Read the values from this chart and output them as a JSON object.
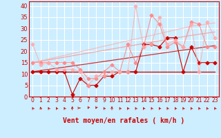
{
  "title": "",
  "xlabel": "Vent moyen/en rafales ( km/h )",
  "background_color": "#cceeff",
  "grid_color": "#ffffff",
  "x_values": [
    0,
    1,
    2,
    3,
    4,
    5,
    6,
    7,
    8,
    9,
    10,
    11,
    12,
    13,
    14,
    15,
    16,
    17,
    18,
    19,
    20,
    21,
    22,
    23
  ],
  "ylim": [
    0,
    42
  ],
  "yticks": [
    0,
    5,
    10,
    15,
    20,
    25,
    30,
    35,
    40
  ],
  "series": [
    {
      "label": "dark_red_data",
      "color": "#cc0000",
      "alpha": 1.0,
      "linewidth": 0.8,
      "marker": "D",
      "markersize": 2.5,
      "y": [
        11,
        11,
        11,
        11,
        11,
        1,
        8,
        5,
        5,
        9,
        9,
        11,
        11,
        11,
        23,
        23,
        22,
        26,
        26,
        11,
        22,
        15,
        15,
        15
      ]
    },
    {
      "label": "light_pink_data",
      "color": "#ff8888",
      "alpha": 0.9,
      "linewidth": 0.8,
      "marker": "D",
      "markersize": 2.5,
      "y": [
        15,
        15,
        15,
        15,
        15,
        15,
        12,
        8,
        8,
        11,
        14,
        11,
        23,
        15,
        22,
        36,
        32,
        22,
        24,
        22,
        33,
        32,
        22,
        22
      ]
    },
    {
      "label": "very_light_pink_data",
      "color": "#ffaaaa",
      "alpha": 0.8,
      "linewidth": 0.8,
      "marker": "D",
      "markersize": 2.5,
      "y": [
        23,
        14,
        15,
        12,
        12,
        12,
        11,
        5,
        9,
        9,
        11,
        11,
        11,
        40,
        22,
        23,
        35,
        23,
        25,
        22,
        32,
        11,
        33,
        26
      ]
    },
    {
      "label": "dark_red_trend",
      "color": "#cc0000",
      "alpha": 1.0,
      "linewidth": 0.9,
      "y": [
        11,
        11,
        11,
        11,
        11,
        11,
        11,
        11,
        11,
        11,
        11,
        11,
        11,
        11,
        11,
        11,
        11,
        11,
        11,
        11,
        11,
        11,
        11,
        11
      ]
    },
    {
      "label": "dark_red_trend2",
      "color": "#cc0000",
      "alpha": 0.8,
      "linewidth": 0.9,
      "y": [
        11,
        11.5,
        12,
        12.5,
        13,
        13.5,
        14,
        14.5,
        15,
        15.5,
        16,
        16.5,
        17,
        17.5,
        18,
        18.5,
        19,
        19.5,
        20,
        20.5,
        21,
        21.5,
        22,
        22.5
      ]
    },
    {
      "label": "pink_trend1",
      "color": "#ff8888",
      "alpha": 0.7,
      "linewidth": 0.9,
      "y": [
        15,
        15.6,
        16.2,
        16.8,
        17.4,
        18,
        18.6,
        19.2,
        19.8,
        20.4,
        21,
        21.6,
        22.2,
        22.8,
        23.4,
        24,
        24.6,
        25.2,
        25.8,
        26.4,
        27,
        27.5,
        28,
        28.5
      ]
    },
    {
      "label": "pink_trend2",
      "color": "#ffaaaa",
      "alpha": 0.7,
      "linewidth": 0.9,
      "y": [
        15,
        15.8,
        16.6,
        17.4,
        18.2,
        19,
        19.8,
        20.6,
        21.4,
        22.2,
        23,
        23.8,
        24.6,
        25.4,
        26.2,
        27,
        27.8,
        28.6,
        29.4,
        30.2,
        31,
        31.5,
        32,
        32.5
      ]
    }
  ],
  "xlabel_color": "#cc0000",
  "tick_color": "#cc0000",
  "axis_color": "#cc0000",
  "wind_arrow_angles": [
    225,
    210,
    225,
    225,
    225,
    180,
    90,
    315,
    315,
    225,
    180,
    225,
    225,
    225,
    225,
    225,
    225,
    225,
    225,
    225,
    225,
    225,
    225,
    225
  ]
}
